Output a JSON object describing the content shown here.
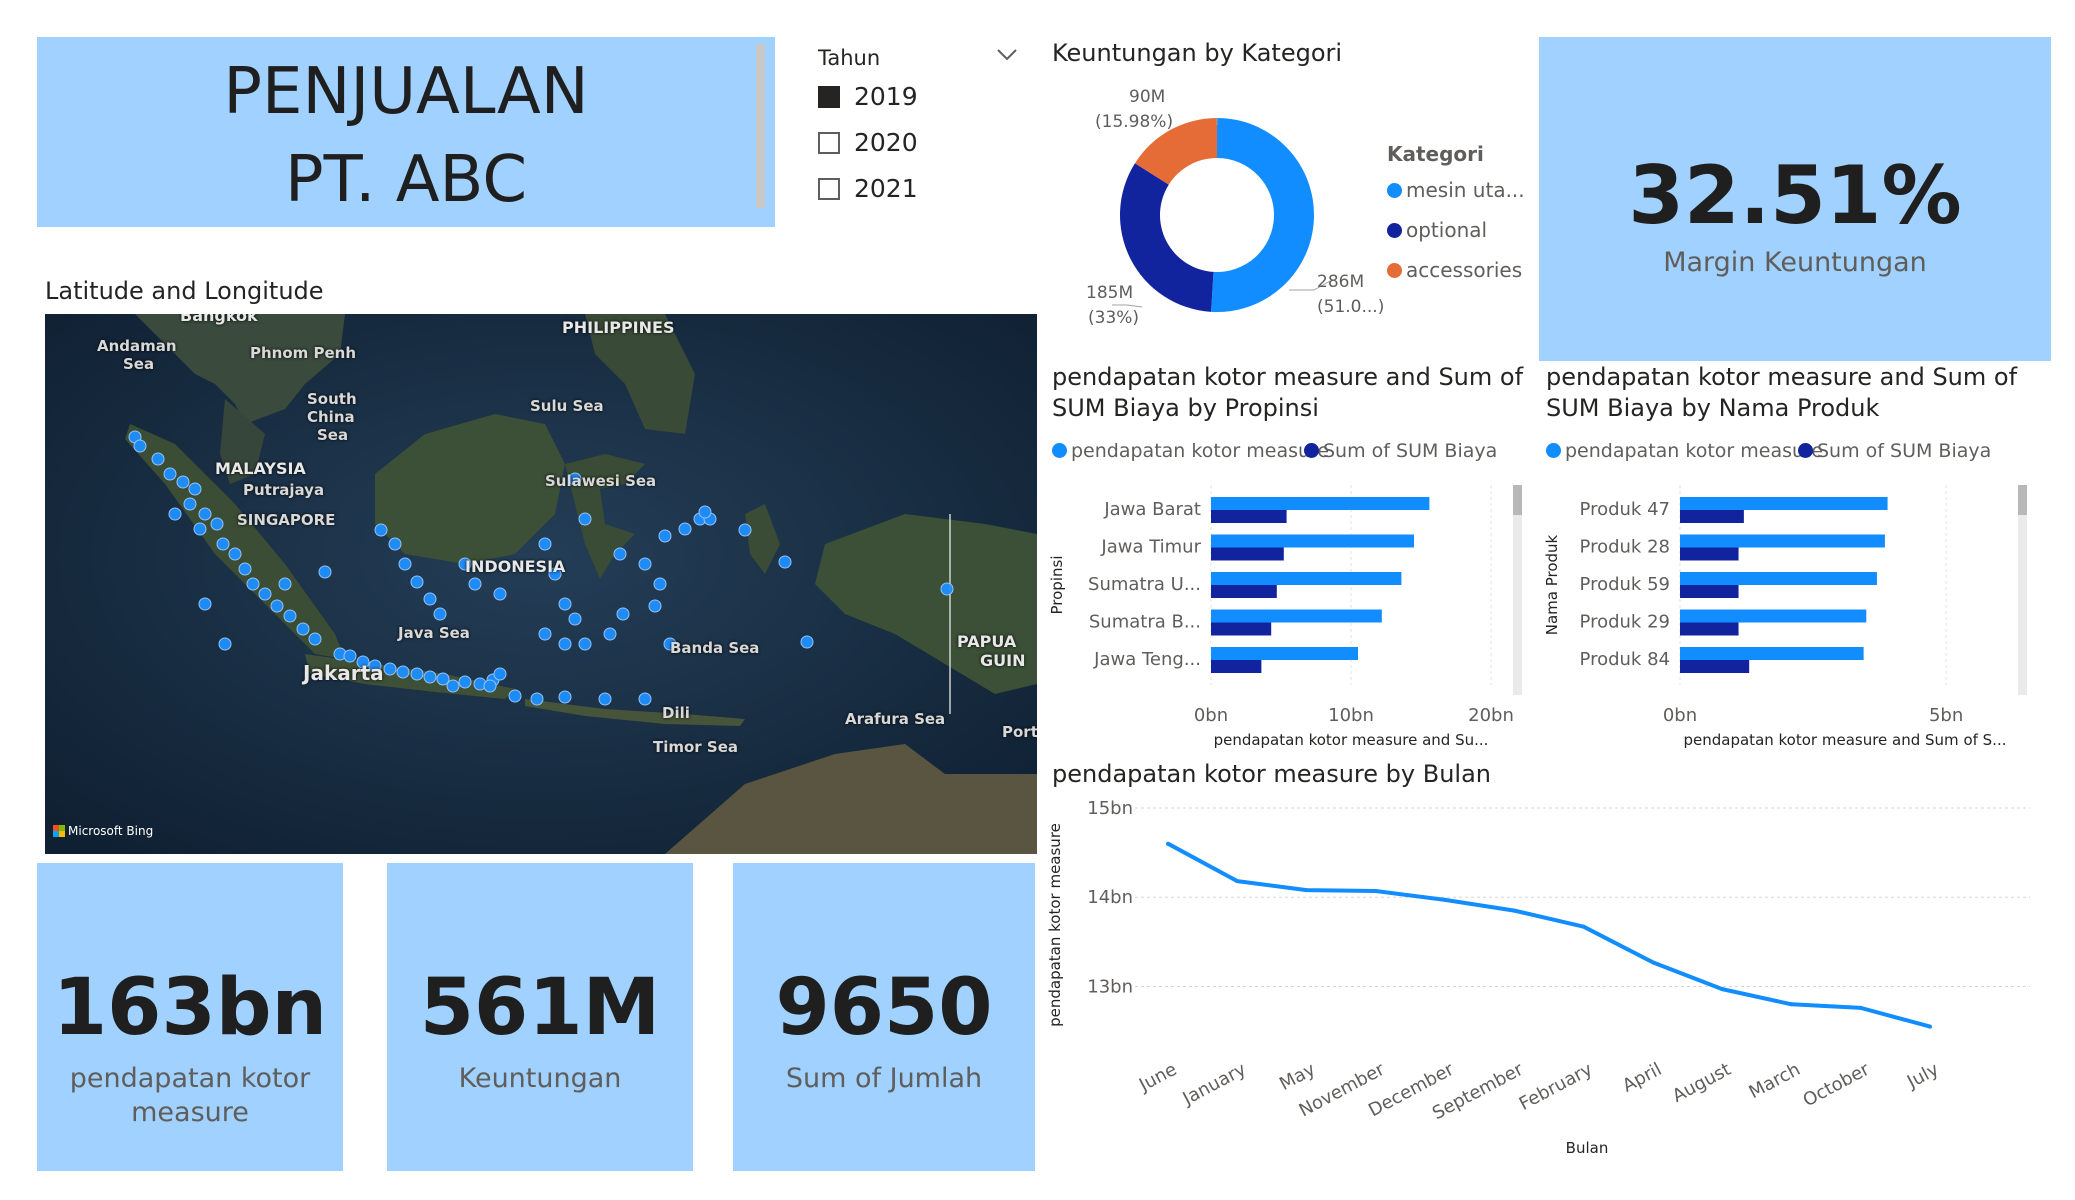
{
  "header": {
    "title_line1": "PENJUALAN",
    "title_line2": "PT. ABC"
  },
  "slicer": {
    "title": "Tahun",
    "options": [
      {
        "label": "2019",
        "checked": true
      },
      {
        "label": "2020",
        "checked": false
      },
      {
        "label": "2021",
        "checked": false
      }
    ]
  },
  "map": {
    "title": "Latitude and Longitude",
    "attribution": "Microsoft Bing",
    "labels": {
      "bangkok": "Bangkok",
      "andaman": "Andaman",
      "andaman2": "Sea",
      "phnom_penh": "Phnom Penh",
      "south_china": "South",
      "south_china2": "China",
      "south_china3": "Sea",
      "philippines": "PHILIPPINES",
      "sulu": "Sulu Sea",
      "malaysia": "MALAYSIA",
      "putrajaya": "Putrajaya",
      "singapore": "SINGAPORE",
      "sulawesi": "Sulawesi Sea",
      "indonesia": "INDONESIA",
      "java_sea": "Java Sea",
      "banda": "Banda Sea",
      "papua": "PAPUA",
      "papua2": "GUIN",
      "jakarta": "Jakarta",
      "dili": "Dili",
      "arafura": "Arafura Sea",
      "timor": "Timor Sea",
      "port": "Port"
    }
  },
  "kpis": {
    "pendapatan": {
      "value": "163bn",
      "label1": "pendapatan kotor",
      "label2": "measure"
    },
    "keuntungan": {
      "value": "561M",
      "label": "Keuntungan"
    },
    "jumlah": {
      "value": "9650",
      "label": "Sum of Jumlah"
    },
    "margin": {
      "value": "32.51%",
      "label": "Margin Keuntungan"
    }
  },
  "donut": {
    "title": "Keuntungan by Kategori",
    "legend_title": "Kategori",
    "colors": [
      "#118dff",
      "#12239e",
      "#e66c37"
    ],
    "slice_labels": {
      "mesin_value": "286M",
      "mesin_pct": "(51.0...)",
      "optional_value": "185M",
      "optional_pct": "(33%)",
      "accessories_value": "90M",
      "accessories_pct": "(15.98%)"
    },
    "legend": [
      "mesin uta...",
      "optional",
      "accessories"
    ]
  },
  "chart_data": [
    {
      "type": "pie",
      "title": "Keuntungan by Kategori",
      "categories": [
        "mesin uta...",
        "optional",
        "accessories"
      ],
      "values": [
        286,
        185,
        90
      ],
      "unit": "M",
      "percent": [
        51.0,
        33,
        15.98
      ],
      "donut": true
    },
    {
      "type": "bar",
      "orientation": "horizontal",
      "title": "pendapatan kotor measure and Sum of SUM Biaya by Propinsi",
      "categories": [
        "Jawa Barat",
        "Jawa Timur",
        "Sumatra U...",
        "Sumatra B...",
        "Jawa Teng..."
      ],
      "series": [
        {
          "name": "pendapatan kotor measure",
          "values": [
            15.6,
            14.5,
            13.6,
            12.2,
            10.5
          ]
        },
        {
          "name": "Sum of SUM Biaya",
          "values": [
            5.4,
            5.2,
            4.7,
            4.3,
            3.6
          ]
        }
      ],
      "xlabel": "pendapatan kotor measure and Su...",
      "ylabel": "Propinsi",
      "xticks": [
        "0bn",
        "10bn",
        "20bn"
      ],
      "xlim": [
        0,
        20
      ]
    },
    {
      "type": "bar",
      "orientation": "horizontal",
      "title": "pendapatan kotor measure and Sum of SUM Biaya by Nama Produk",
      "categories": [
        "Produk 47",
        "Produk 28",
        "Produk 59",
        "Produk 29",
        "Produk 84"
      ],
      "series": [
        {
          "name": "pendapatan kotor measure",
          "values": [
            3.9,
            3.85,
            3.7,
            3.5,
            3.45
          ]
        },
        {
          "name": "Sum of SUM Biaya",
          "values": [
            1.2,
            1.1,
            1.1,
            1.1,
            1.3
          ]
        }
      ],
      "xlabel": "pendapatan kotor measure and Sum of S...",
      "ylabel": "Nama Produk",
      "xticks": [
        "0bn",
        "5bn"
      ],
      "xlim": [
        0,
        6.2
      ]
    },
    {
      "type": "line",
      "title": "pendapatan kotor measure by Bulan",
      "categories": [
        "June",
        "January",
        "May",
        "November",
        "December",
        "September",
        "February",
        "April",
        "August",
        "March",
        "October",
        "July"
      ],
      "values": [
        14.6,
        14.18,
        14.08,
        14.07,
        13.97,
        13.85,
        13.67,
        13.27,
        12.97,
        12.8,
        12.76,
        12.55
      ],
      "xlabel": "Bulan",
      "ylabel": "pendapatan kotor measure",
      "yticks": [
        "13bn",
        "14bn",
        "15bn"
      ],
      "ylim": [
        12.4,
        15
      ]
    }
  ],
  "bar_propinsi": {
    "title1": "pendapatan kotor measure and Sum of",
    "title2": "SUM Biaya by Propinsi",
    "legend": [
      "pendapatan kotor measure",
      "Sum of SUM Biaya"
    ],
    "colors": [
      "#118dff",
      "#12239e"
    ]
  },
  "bar_produk": {
    "title1": "pendapatan kotor measure and Sum of",
    "title2": "SUM Biaya by Nama Produk",
    "legend": [
      "pendapatan kotor measure",
      "Sum of SUM Biaya"
    ]
  },
  "line_chart": {
    "title": "pendapatan kotor measure by Bulan",
    "color": "#118dff"
  }
}
